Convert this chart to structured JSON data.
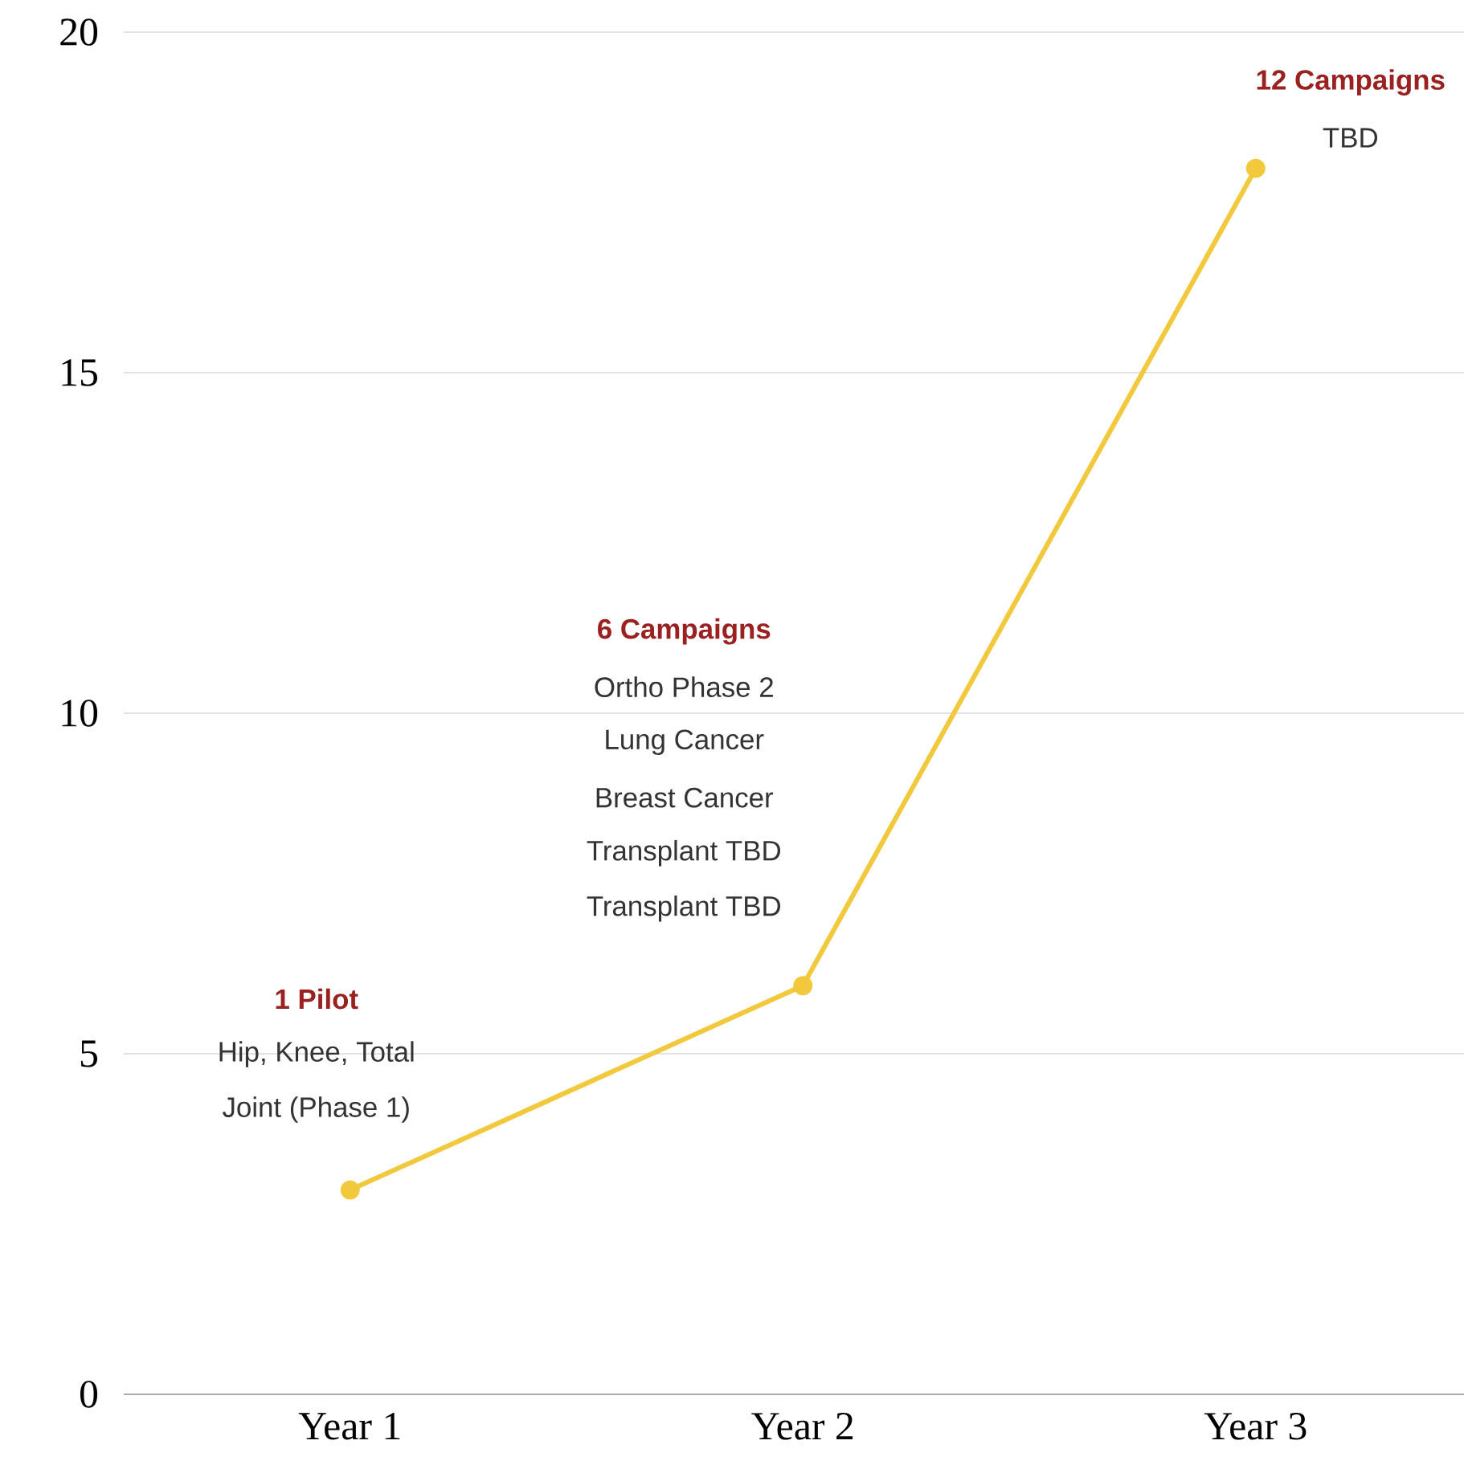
{
  "chart_data": {
    "type": "line",
    "categories": [
      "Year 1",
      "Year 2",
      "Year 3"
    ],
    "values": [
      3,
      6,
      18
    ],
    "color": "#f2c83c",
    "marker": "circle",
    "ylim": [
      0,
      20
    ],
    "yticks": [
      0,
      5,
      10,
      15,
      20
    ],
    "grid": "y",
    "annotations": [
      "1 Pilot",
      "Hip, Knee, Total",
      "Joint (Phase 1)",
      "6 Campaigns",
      "Ortho Phase 2",
      "Lung Cancer",
      "Breast Cancer",
      "Transplant TBD",
      "Transplant TBD",
      "12 Campaigns",
      "TBD"
    ]
  }
}
